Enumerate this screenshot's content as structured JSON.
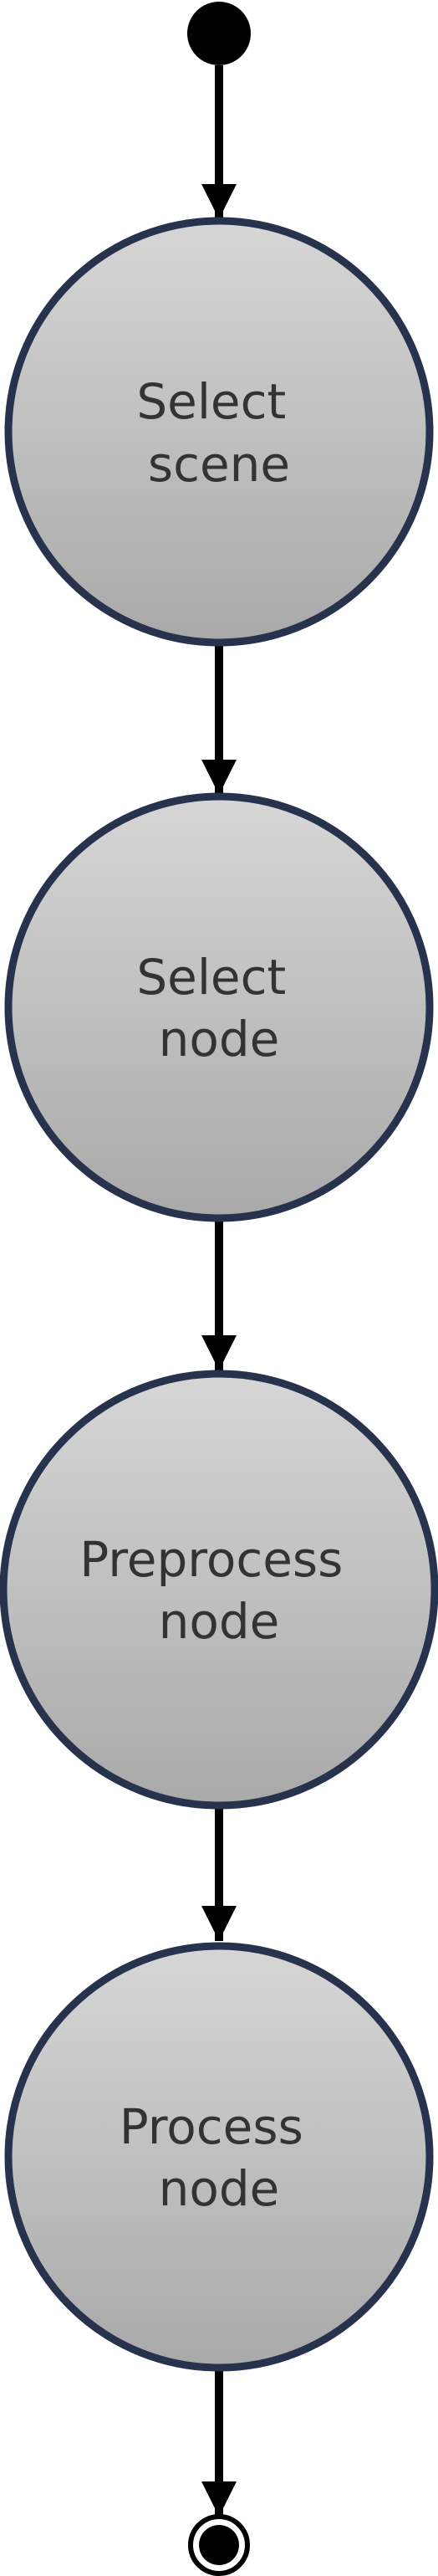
{
  "diagram": {
    "type": "activity-flow",
    "colors": {
      "state_fill_top": "#d6d6d6",
      "state_fill_bottom": "#a9a9a9",
      "state_stroke": "#27324d",
      "text": "#333333",
      "edge": "#000000",
      "start_node": "#000000",
      "end_node": "#000000"
    },
    "start_node": {
      "kind": "initial"
    },
    "states": [
      {
        "line1": "Select",
        "line2": "scene"
      },
      {
        "line1": "Select",
        "line2": "node"
      },
      {
        "line1": "Preprocess",
        "line2": "node"
      },
      {
        "line1": "Process",
        "line2": "node"
      }
    ],
    "end_node": {
      "kind": "final"
    }
  }
}
